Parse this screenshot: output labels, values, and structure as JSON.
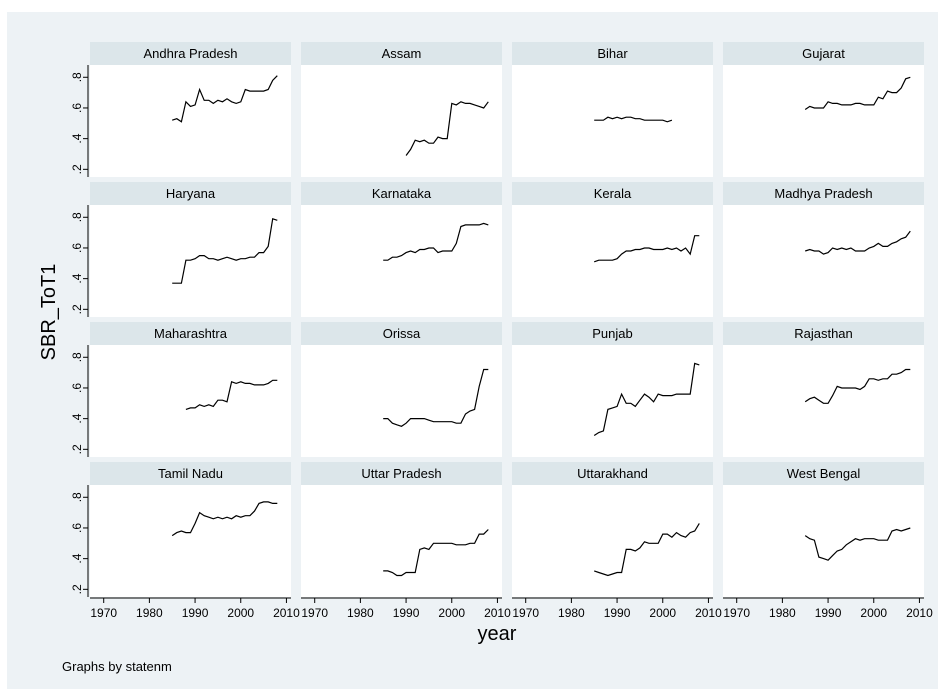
{
  "chart_data": {
    "type": "line",
    "layout": "small-multiples",
    "xlabel": "year",
    "ylabel": "SBR_ToT1",
    "note": "Graphs by statenm",
    "xlim": [
      1967,
      2011
    ],
    "ylim": [
      0.15,
      0.88
    ],
    "x_ticks": [
      1970,
      1980,
      1990,
      2000,
      2010
    ],
    "y_ticks": [
      0.2,
      0.4,
      0.6,
      0.8
    ],
    "y_tick_labels": [
      ".2",
      ".4",
      ".6",
      ".8"
    ],
    "grid": false,
    "colors": {
      "background": "#edf2f5",
      "strip": "#dce6ea",
      "panel": "#ffffff",
      "line": "#000000"
    },
    "panels": [
      {
        "name": "Andhra Pradesh",
        "x": [
          1985,
          1986,
          1987,
          1988,
          1989,
          1990,
          1991,
          1992,
          1993,
          1994,
          1995,
          1996,
          1997,
          1998,
          1999,
          2000,
          2001,
          2002,
          2003,
          2004,
          2005,
          2006,
          2007,
          2008
        ],
        "y": [
          0.52,
          0.53,
          0.51,
          0.64,
          0.61,
          0.62,
          0.72,
          0.65,
          0.65,
          0.63,
          0.65,
          0.64,
          0.66,
          0.64,
          0.63,
          0.64,
          0.72,
          0.71,
          0.71,
          0.71,
          0.71,
          0.72,
          0.78,
          0.81
        ]
      },
      {
        "name": "Assam",
        "x": [
          1990,
          1991,
          1992,
          1993,
          1994,
          1995,
          1996,
          1997,
          1998,
          1999,
          2000,
          2001,
          2002,
          2003,
          2004,
          2005,
          2006,
          2007,
          2008
        ],
        "y": [
          0.29,
          0.33,
          0.39,
          0.38,
          0.39,
          0.37,
          0.37,
          0.41,
          0.4,
          0.4,
          0.63,
          0.62,
          0.64,
          0.63,
          0.63,
          0.62,
          0.61,
          0.6,
          0.64
        ]
      },
      {
        "name": "Bihar",
        "x": [
          1985,
          1986,
          1987,
          1988,
          1989,
          1990,
          1991,
          1992,
          1993,
          1994,
          1995,
          1996,
          1997,
          1998,
          1999,
          2000,
          2001,
          2002
        ],
        "y": [
          0.52,
          0.52,
          0.52,
          0.54,
          0.53,
          0.54,
          0.53,
          0.54,
          0.54,
          0.53,
          0.53,
          0.52,
          0.52,
          0.52,
          0.52,
          0.52,
          0.51,
          0.52
        ]
      },
      {
        "name": "Gujarat",
        "x": [
          1985,
          1986,
          1987,
          1988,
          1989,
          1990,
          1991,
          1992,
          1993,
          1994,
          1995,
          1996,
          1997,
          1998,
          1999,
          2000,
          2001,
          2002,
          2003,
          2004,
          2005,
          2006,
          2007,
          2008
        ],
        "y": [
          0.59,
          0.61,
          0.6,
          0.6,
          0.6,
          0.64,
          0.63,
          0.63,
          0.62,
          0.62,
          0.62,
          0.63,
          0.63,
          0.62,
          0.62,
          0.62,
          0.67,
          0.66,
          0.71,
          0.7,
          0.7,
          0.73,
          0.79,
          0.8
        ]
      },
      {
        "name": "Haryana",
        "x": [
          1985,
          1986,
          1987,
          1988,
          1989,
          1990,
          1991,
          1992,
          1993,
          1994,
          1995,
          1996,
          1997,
          1998,
          1999,
          2000,
          2001,
          2002,
          2003,
          2004,
          2005,
          2006,
          2007,
          2008
        ],
        "y": [
          0.37,
          0.37,
          0.37,
          0.52,
          0.52,
          0.53,
          0.55,
          0.55,
          0.53,
          0.53,
          0.52,
          0.53,
          0.54,
          0.53,
          0.52,
          0.53,
          0.53,
          0.54,
          0.54,
          0.57,
          0.57,
          0.61,
          0.79,
          0.78
        ]
      },
      {
        "name": "Karnataka",
        "x": [
          1985,
          1986,
          1987,
          1988,
          1989,
          1990,
          1991,
          1992,
          1993,
          1994,
          1995,
          1996,
          1997,
          1998,
          1999,
          2000,
          2001,
          2002,
          2003,
          2004,
          2005,
          2006,
          2007,
          2008
        ],
        "y": [
          0.52,
          0.52,
          0.54,
          0.54,
          0.55,
          0.57,
          0.58,
          0.57,
          0.59,
          0.59,
          0.6,
          0.6,
          0.57,
          0.58,
          0.58,
          0.58,
          0.63,
          0.74,
          0.75,
          0.75,
          0.75,
          0.75,
          0.76,
          0.75
        ]
      },
      {
        "name": "Kerala",
        "x": [
          1985,
          1986,
          1987,
          1988,
          1989,
          1990,
          1991,
          1992,
          1993,
          1994,
          1995,
          1996,
          1997,
          1998,
          1999,
          2000,
          2001,
          2002,
          2003,
          2004,
          2005,
          2006,
          2007,
          2008
        ],
        "y": [
          0.51,
          0.52,
          0.52,
          0.52,
          0.52,
          0.53,
          0.56,
          0.58,
          0.58,
          0.59,
          0.59,
          0.6,
          0.6,
          0.59,
          0.59,
          0.59,
          0.6,
          0.59,
          0.6,
          0.58,
          0.6,
          0.56,
          0.68,
          0.68
        ]
      },
      {
        "name": "Madhya Pradesh",
        "x": [
          1985,
          1986,
          1987,
          1988,
          1989,
          1990,
          1991,
          1992,
          1993,
          1994,
          1995,
          1996,
          1997,
          1998,
          1999,
          2000,
          2001,
          2002,
          2003,
          2004,
          2005,
          2006,
          2007,
          2008
        ],
        "y": [
          0.58,
          0.59,
          0.58,
          0.58,
          0.56,
          0.57,
          0.6,
          0.59,
          0.6,
          0.59,
          0.6,
          0.58,
          0.58,
          0.58,
          0.6,
          0.61,
          0.63,
          0.61,
          0.61,
          0.63,
          0.64,
          0.66,
          0.67,
          0.71
        ]
      },
      {
        "name": "Maharashtra",
        "x": [
          1988,
          1989,
          1990,
          1991,
          1992,
          1993,
          1994,
          1995,
          1996,
          1997,
          1998,
          1999,
          2000,
          2001,
          2002,
          2003,
          2004,
          2005,
          2006,
          2007,
          2008
        ],
        "y": [
          0.46,
          0.47,
          0.47,
          0.49,
          0.48,
          0.49,
          0.48,
          0.52,
          0.52,
          0.51,
          0.64,
          0.63,
          0.64,
          0.63,
          0.63,
          0.62,
          0.62,
          0.62,
          0.63,
          0.65,
          0.65
        ]
      },
      {
        "name": "Orissa",
        "x": [
          1985,
          1986,
          1987,
          1988,
          1989,
          1990,
          1991,
          1992,
          1993,
          1994,
          1995,
          1996,
          1997,
          1998,
          1999,
          2000,
          2001,
          2002,
          2003,
          2004,
          2005,
          2006,
          2007,
          2008
        ],
        "y": [
          0.4,
          0.4,
          0.37,
          0.36,
          0.35,
          0.37,
          0.4,
          0.4,
          0.4,
          0.4,
          0.39,
          0.38,
          0.38,
          0.38,
          0.38,
          0.38,
          0.37,
          0.37,
          0.43,
          0.45,
          0.46,
          0.61,
          0.72,
          0.72
        ]
      },
      {
        "name": "Punjab",
        "x": [
          1985,
          1986,
          1987,
          1988,
          1989,
          1990,
          1991,
          1992,
          1993,
          1994,
          1995,
          1996,
          1997,
          1998,
          1999,
          2000,
          2001,
          2002,
          2003,
          2004,
          2005,
          2006,
          2007,
          2008
        ],
        "y": [
          0.29,
          0.31,
          0.32,
          0.46,
          0.47,
          0.48,
          0.56,
          0.5,
          0.5,
          0.48,
          0.52,
          0.56,
          0.54,
          0.51,
          0.56,
          0.55,
          0.55,
          0.55,
          0.56,
          0.56,
          0.56,
          0.56,
          0.76,
          0.75
        ]
      },
      {
        "name": "Rajasthan",
        "x": [
          1985,
          1986,
          1987,
          1988,
          1989,
          1990,
          1991,
          1992,
          1993,
          1994,
          1995,
          1996,
          1997,
          1998,
          1999,
          2000,
          2001,
          2002,
          2003,
          2004,
          2005,
          2006,
          2007,
          2008
        ],
        "y": [
          0.51,
          0.53,
          0.54,
          0.52,
          0.5,
          0.5,
          0.55,
          0.61,
          0.6,
          0.6,
          0.6,
          0.6,
          0.59,
          0.61,
          0.66,
          0.66,
          0.65,
          0.66,
          0.66,
          0.69,
          0.69,
          0.7,
          0.72,
          0.72
        ]
      },
      {
        "name": "Tamil Nadu",
        "x": [
          1985,
          1986,
          1987,
          1988,
          1989,
          1990,
          1991,
          1992,
          1993,
          1994,
          1995,
          1996,
          1997,
          1998,
          1999,
          2000,
          2001,
          2002,
          2003,
          2004,
          2005,
          2006,
          2007,
          2008
        ],
        "y": [
          0.55,
          0.57,
          0.58,
          0.57,
          0.57,
          0.63,
          0.7,
          0.68,
          0.67,
          0.66,
          0.67,
          0.66,
          0.67,
          0.66,
          0.68,
          0.67,
          0.68,
          0.68,
          0.71,
          0.76,
          0.77,
          0.77,
          0.76,
          0.76
        ]
      },
      {
        "name": "Uttar Pradesh",
        "x": [
          1985,
          1986,
          1987,
          1988,
          1989,
          1990,
          1991,
          1992,
          1993,
          1994,
          1995,
          1996,
          1997,
          1998,
          1999,
          2000,
          2001,
          2002,
          2003,
          2004,
          2005,
          2006,
          2007,
          2008
        ],
        "y": [
          0.32,
          0.32,
          0.31,
          0.29,
          0.29,
          0.31,
          0.31,
          0.31,
          0.46,
          0.47,
          0.46,
          0.5,
          0.5,
          0.5,
          0.5,
          0.5,
          0.49,
          0.49,
          0.49,
          0.5,
          0.5,
          0.56,
          0.56,
          0.59
        ]
      },
      {
        "name": "Uttarakhand",
        "x": [
          1985,
          1986,
          1987,
          1988,
          1989,
          1990,
          1991,
          1992,
          1993,
          1994,
          1995,
          1996,
          1997,
          1998,
          1999,
          2000,
          2001,
          2002,
          2003,
          2004,
          2005,
          2006,
          2007,
          2008
        ],
        "y": [
          0.32,
          0.31,
          0.3,
          0.29,
          0.3,
          0.31,
          0.31,
          0.46,
          0.46,
          0.45,
          0.47,
          0.51,
          0.5,
          0.5,
          0.5,
          0.56,
          0.56,
          0.54,
          0.57,
          0.55,
          0.54,
          0.57,
          0.58,
          0.63
        ]
      },
      {
        "name": "West Bengal",
        "x": [
          1985,
          1986,
          1987,
          1988,
          1989,
          1990,
          1991,
          1992,
          1993,
          1994,
          1995,
          1996,
          1997,
          1998,
          1999,
          2000,
          2001,
          2002,
          2003,
          2004,
          2005,
          2006,
          2007,
          2008
        ],
        "y": [
          0.55,
          0.53,
          0.52,
          0.41,
          0.4,
          0.39,
          0.42,
          0.45,
          0.46,
          0.49,
          0.51,
          0.53,
          0.52,
          0.53,
          0.53,
          0.53,
          0.52,
          0.52,
          0.52,
          0.58,
          0.59,
          0.58,
          0.59,
          0.6
        ]
      }
    ]
  }
}
